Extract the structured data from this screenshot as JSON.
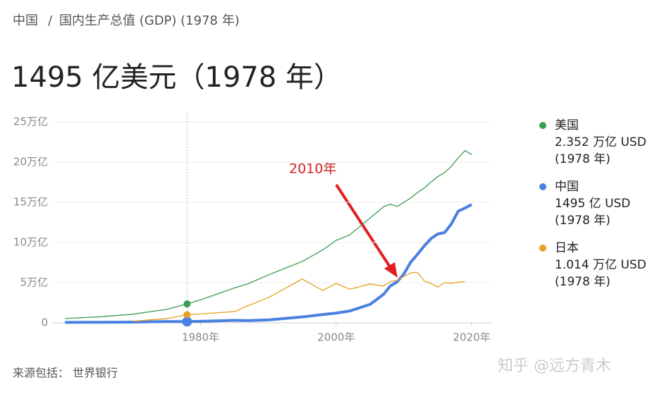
{
  "chart_data": {
    "type": "line",
    "breadcrumb": [
      "中国",
      "国内生产总值 (GDP) (1978 年)"
    ],
    "breadcrumb_separator": "/",
    "title": "1495 亿美元（1978 年）",
    "x": [
      1960,
      1965,
      1970,
      1975,
      1978,
      1980,
      1985,
      1987,
      1990,
      1995,
      1998,
      2000,
      2002,
      2005,
      2007,
      2008,
      2009,
      2010,
      2011,
      2012,
      2013,
      2014,
      2015,
      2016,
      2017,
      2018,
      2019,
      2020
    ],
    "series": [
      {
        "name": "美国",
        "color": "#3c9c52",
        "line_width": 1.3,
        "legend_value": "2.352 万亿 USD",
        "legend_period": "(1978 年)",
        "values": [
          0.54,
          0.74,
          1.07,
          1.68,
          2.35,
          2.86,
          4.34,
          4.86,
          5.96,
          7.64,
          9.06,
          10.25,
          10.94,
          13.04,
          14.45,
          14.77,
          14.48,
          14.99,
          15.54,
          16.2,
          16.78,
          17.52,
          18.2,
          18.7,
          19.48,
          20.53,
          21.43,
          20.94
        ]
      },
      {
        "name": "中国",
        "color": "#4a80e0",
        "line_width": 4,
        "legend_value": "1495 亿 USD",
        "legend_period": "(1978 年)",
        "values": [
          0.06,
          0.07,
          0.09,
          0.16,
          0.15,
          0.19,
          0.31,
          0.27,
          0.36,
          0.73,
          1.03,
          1.21,
          1.47,
          2.29,
          3.55,
          4.59,
          5.1,
          6.09,
          7.55,
          8.53,
          9.57,
          10.48,
          11.06,
          11.23,
          12.31,
          13.89,
          14.28,
          14.72
        ]
      },
      {
        "name": "日本",
        "color": "#e8a020",
        "line_width": 1.3,
        "legend_value": "1.014 万亿 USD",
        "legend_period": "(1978 年)",
        "values": [
          null,
          null,
          0.21,
          0.52,
          1.01,
          1.11,
          1.4,
          2.13,
          3.13,
          5.45,
          4.03,
          4.89,
          4.18,
          4.83,
          4.58,
          5.11,
          5.29,
          5.76,
          6.23,
          6.27,
          5.21,
          4.9,
          4.44,
          5.0,
          4.93,
          5.04,
          5.12,
          null
        ]
      }
    ],
    "highlight_x": 1978,
    "xlim": [
      1958.2,
      2023
    ],
    "xticks": [
      {
        "value": 1980,
        "label": "1980年"
      },
      {
        "value": 2000,
        "label": "2000年"
      },
      {
        "value": 2020,
        "label": "2020年"
      }
    ],
    "ylim": [
      0,
      25
    ],
    "yticks": [
      0,
      {
        "value": 5,
        "label": "5万亿"
      },
      {
        "value": 10,
        "label": "10万亿"
      },
      {
        "value": 15,
        "label": "15万亿"
      },
      {
        "value": 20,
        "label": "20万亿"
      },
      {
        "value": 25,
        "label": "25万亿"
      }
    ],
    "grid": true,
    "annotation": "2010年",
    "source": "来源包括：  世界银行",
    "watermark": "知乎 @远方青木"
  }
}
